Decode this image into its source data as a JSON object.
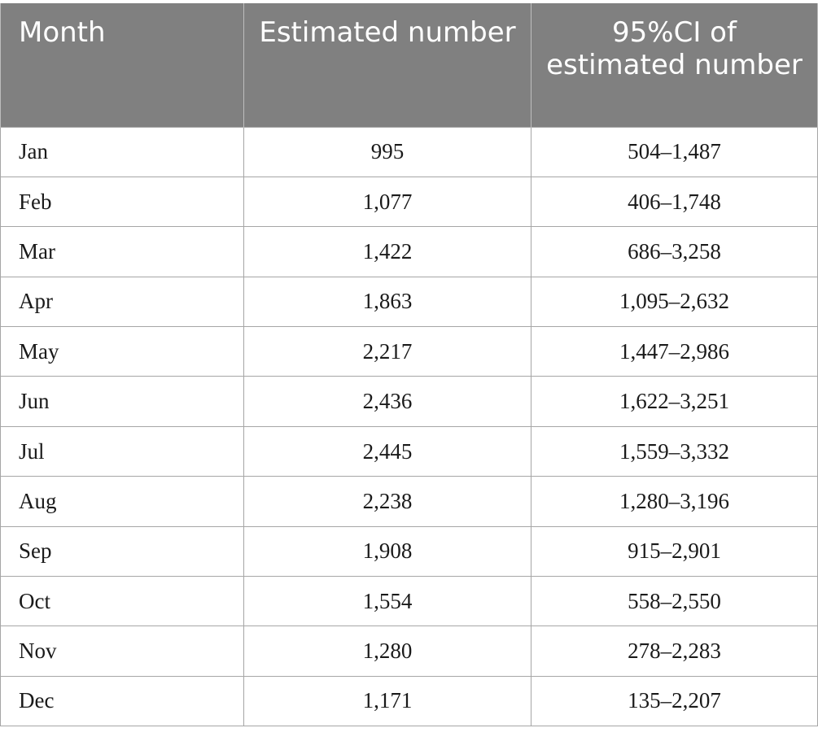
{
  "table": {
    "headers": [
      "Month",
      "Estimated number",
      "95%CI of estimated number"
    ],
    "rows": [
      {
        "month": "Jan",
        "estimate": "995",
        "ci": "504–1,487"
      },
      {
        "month": "Feb",
        "estimate": "1,077",
        "ci": "406–1,748"
      },
      {
        "month": "Mar",
        "estimate": "1,422",
        "ci": "686–3,258"
      },
      {
        "month": "Apr",
        "estimate": "1,863",
        "ci": "1,095–2,632"
      },
      {
        "month": "May",
        "estimate": "2,217",
        "ci": "1,447–2,986"
      },
      {
        "month": "Jun",
        "estimate": "2,436",
        "ci": "1,622–3,251"
      },
      {
        "month": "Jul",
        "estimate": "2,445",
        "ci": "1,559–3,332"
      },
      {
        "month": "Aug",
        "estimate": "2,238",
        "ci": "1,280–3,196"
      },
      {
        "month": "Sep",
        "estimate": "1,908",
        "ci": "915–2,901"
      },
      {
        "month": "Oct",
        "estimate": "1,554",
        "ci": "558–2,550"
      },
      {
        "month": "Nov",
        "estimate": "1,280",
        "ci": "278–2,283"
      },
      {
        "month": "Dec",
        "estimate": "1,171",
        "ci": "135–2,207"
      }
    ]
  },
  "colors": {
    "header_bg": "#808080",
    "header_text": "#ffffff",
    "grid": "#a6a6a6"
  }
}
